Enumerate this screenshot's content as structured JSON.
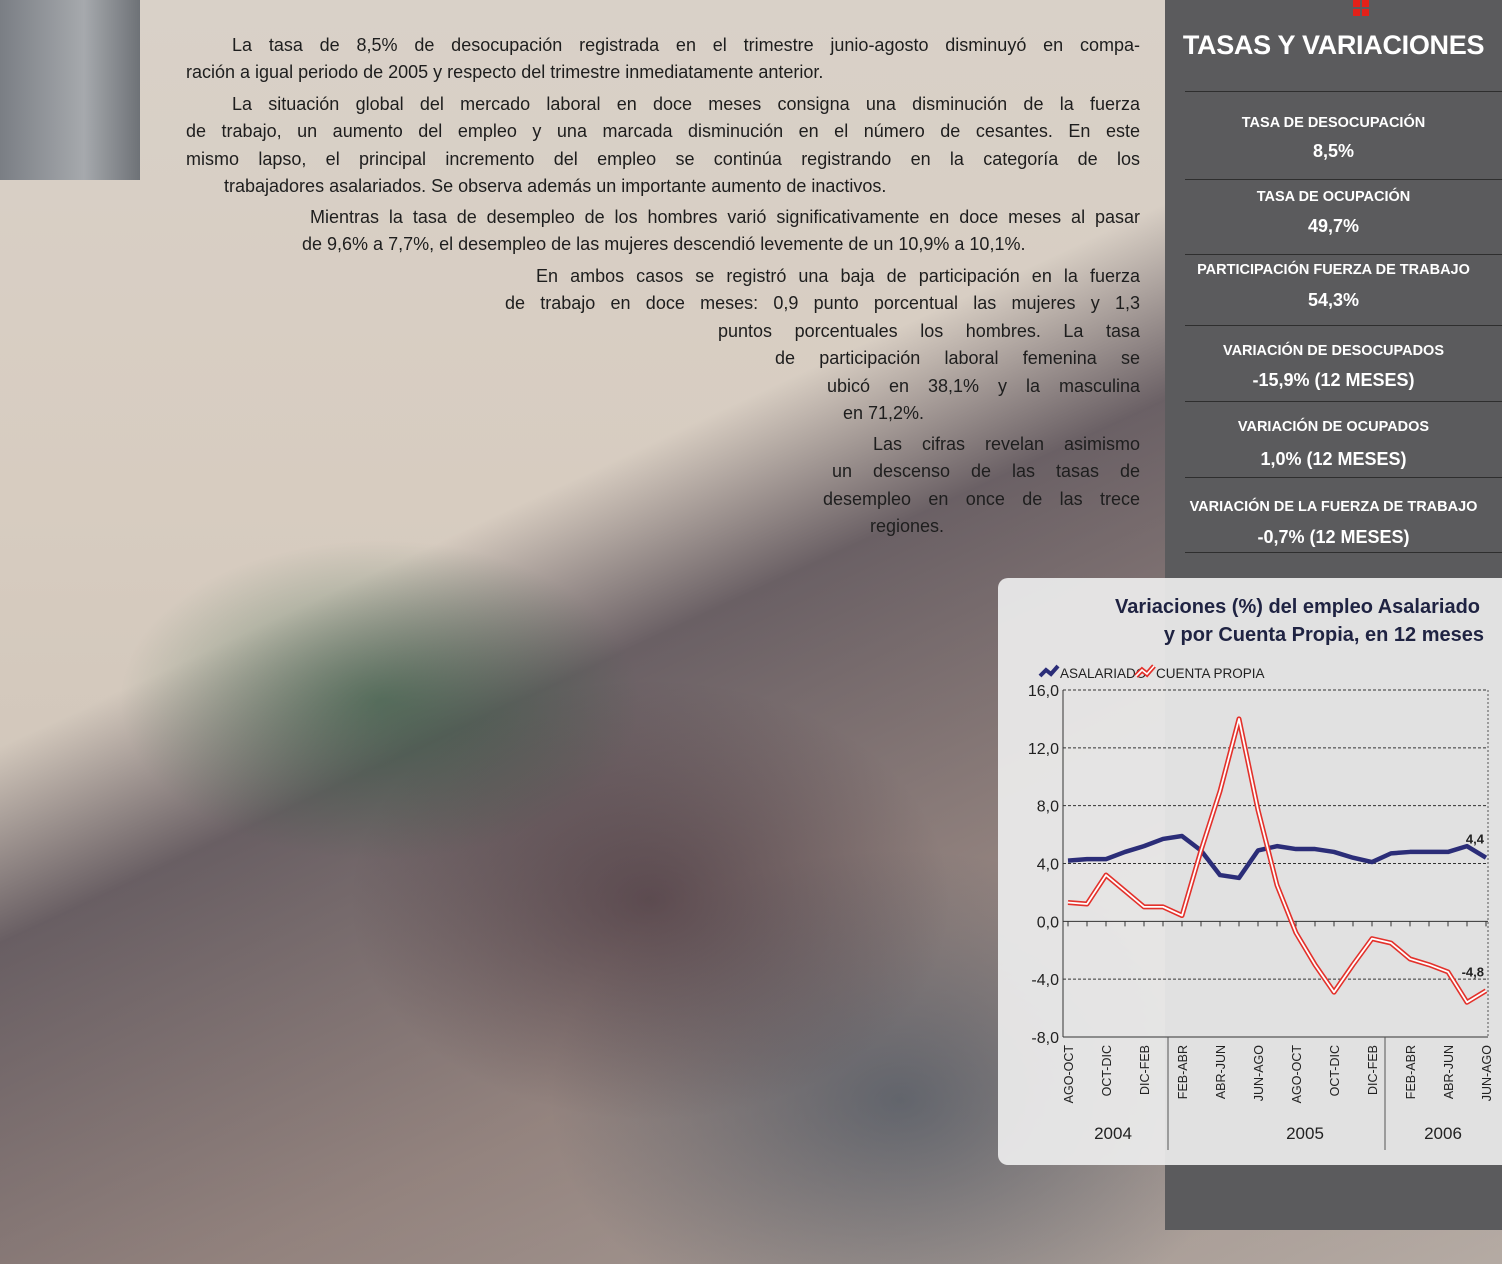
{
  "body": {
    "paragraphs": [
      {
        "lines": [
          "La tasa de 8,5% de desocupación registrada en el trimestre junio-agosto disminuyó en compa-",
          "ración a igual periodo de 2005 y respecto del trimestre inmediatamente anterior."
        ]
      },
      {
        "lines": [
          "La situación global del mercado laboral en doce meses consigna una disminución de la fuerza",
          "de trabajo, un aumento del empleo y una marcada disminución en el número de cesantes. En este",
          "mismo lapso, el principal incremento del empleo se continúa registrando en la categoría de los",
          "trabajadores asalariados. Se observa además un importante aumento de inactivos."
        ]
      },
      {
        "lines": [
          "Mientras la tasa de desempleo de los hombres varió significativamente en doce meses al pasar",
          "de 9,6% a 7,7%, el desempleo de las mujeres descendió levemente de un 10,9% a 10,1%."
        ]
      },
      {
        "lines": [
          "En ambos casos se registró una baja de participación en la fuerza",
          "de trabajo en doce meses: 0,9 punto porcentual las mujeres y 1,3",
          "puntos porcentuales los hombres. La tasa",
          "de participación laboral femenina se",
          "ubicó en 38,1% y la masculina",
          "en 71,2%."
        ]
      },
      {
        "lines": [
          "Las cifras revelan asimismo",
          "un descenso de las tasas de",
          "desempleo en once de las trece",
          "regiones."
        ]
      }
    ]
  },
  "sidebar": {
    "title": "TASAS Y VARIACIONES",
    "items": [
      {
        "label": "TASA DE DESOCUPACIÓN",
        "value": "8,5%"
      },
      {
        "label": "TASA DE OCUPACIÓN",
        "value": "49,7%"
      },
      {
        "label": "PARTICIPACIÓN FUERZA DE TRABAJO",
        "value": "54,3%"
      },
      {
        "label": "VARIACIÓN DE DESOCUPADOS",
        "value": "-15,9% (12 MESES)"
      },
      {
        "label": "VARIACIÓN DE OCUPADOS",
        "value": "1,0% (12 MESES)"
      },
      {
        "label": "VARIACIÓN DE LA FUERZA DE TRABAJO",
        "value": "-0,7% (12 MESES)"
      }
    ]
  },
  "chart_data": {
    "type": "line",
    "title": [
      "Variaciones (%) del empleo Asalariado",
      "y por Cuenta Propia, en 12 meses"
    ],
    "categories": [
      "AGO-OCT",
      null,
      "OCT-DIC",
      null,
      "DIC-FEB",
      null,
      "FEB-ABR",
      null,
      "ABR-JUN",
      null,
      "JUN-AGO",
      null,
      "AGO-OCT",
      null,
      "OCT-DIC",
      null,
      "DIC-FEB",
      null,
      "FEB-ABR",
      null,
      "ABR-JUN",
      null,
      "JUN-AGO"
    ],
    "years": [
      "2004",
      "2005",
      "2006"
    ],
    "ylim": [
      -8,
      16
    ],
    "yticks": [
      {
        "value": -8,
        "label": "-8,0"
      },
      {
        "value": -4,
        "label": "-4,0"
      },
      {
        "value": 0,
        "label": "0,0"
      },
      {
        "value": 4,
        "label": "4,0"
      },
      {
        "value": 8,
        "label": "8,0"
      },
      {
        "value": 12,
        "label": "12,0"
      },
      {
        "value": 16,
        "label": "16,0"
      }
    ],
    "grid": true,
    "series": [
      {
        "name": "ASALARIADO",
        "color": "#2b2d78",
        "values": [
          4.2,
          4.3,
          4.3,
          4.8,
          5.2,
          5.7,
          5.9,
          4.9,
          3.2,
          3.0,
          4.9,
          5.2,
          5.0,
          5.0,
          4.8,
          4.4,
          4.1,
          4.7,
          4.8,
          4.8,
          4.8,
          5.2,
          4.4
        ],
        "value_labels": [
          null,
          null,
          null,
          null,
          null,
          null,
          null,
          null,
          null,
          null,
          null,
          null,
          null,
          null,
          null,
          null,
          null,
          null,
          null,
          null,
          null,
          null,
          "4,4"
        ]
      },
      {
        "name": "CUENTA PROPIA",
        "color": "#e3312b",
        "values": [
          1.3,
          1.2,
          3.2,
          2.1,
          1.0,
          1.0,
          0.4,
          4.9,
          9.0,
          14.0,
          7.7,
          2.5,
          -0.8,
          -3.0,
          -4.9,
          -3.0,
          -1.2,
          -1.5,
          -2.6,
          -3.0,
          -3.5,
          -5.6,
          -4.8
        ],
        "value_labels": [
          null,
          null,
          null,
          null,
          null,
          null,
          null,
          null,
          null,
          null,
          null,
          null,
          null,
          null,
          null,
          null,
          null,
          null,
          null,
          null,
          null,
          null,
          "-4,8"
        ]
      }
    ]
  }
}
